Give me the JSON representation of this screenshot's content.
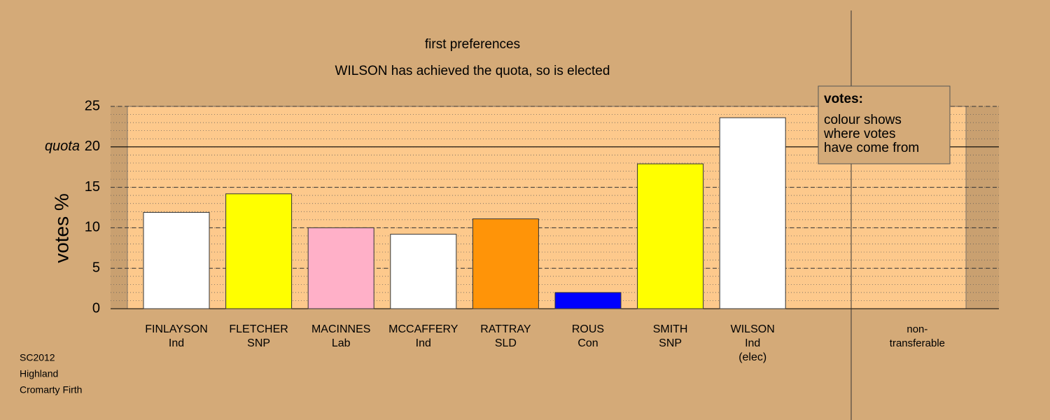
{
  "chart_data": {
    "type": "bar",
    "title": "first preferences",
    "subtitle": "WILSON has achieved the quota, so is elected",
    "ylabel": "votes %",
    "categories": [
      [
        "FINLAYSON",
        "Ind"
      ],
      [
        "FLETCHER",
        "SNP"
      ],
      [
        "MACINNES",
        "Lab"
      ],
      [
        "MCCAFFERY",
        "Ind"
      ],
      [
        "RATTRAY",
        "SLD"
      ],
      [
        "ROUS",
        "Con"
      ],
      [
        "SMITH",
        "SNP"
      ],
      [
        "WILSON",
        "Ind",
        "(elec)"
      ]
    ],
    "values": [
      11.9,
      14.2,
      10.0,
      9.2,
      11.1,
      2.0,
      17.9,
      23.6
    ],
    "colors": [
      "#ffffff",
      "#ffff00",
      "#ffb0c8",
      "#ffffff",
      "#ff9408",
      "#0000ff",
      "#ffff00",
      "#ffffff"
    ],
    "non_transferable_label": [
      "non-",
      "transferable"
    ],
    "ylim": [
      0,
      25
    ],
    "yticks": [
      0,
      5,
      10,
      15,
      25
    ],
    "quota": {
      "value": 20,
      "label": "quota",
      "tick_label": "20"
    },
    "minor_grid_step": 1,
    "grid": true,
    "legend": {
      "title": "votes:",
      "lines": [
        "colour shows",
        "where votes",
        "have come from"
      ]
    },
    "footer": [
      "SC2012",
      "Highland",
      "Cromarty Firth"
    ]
  }
}
